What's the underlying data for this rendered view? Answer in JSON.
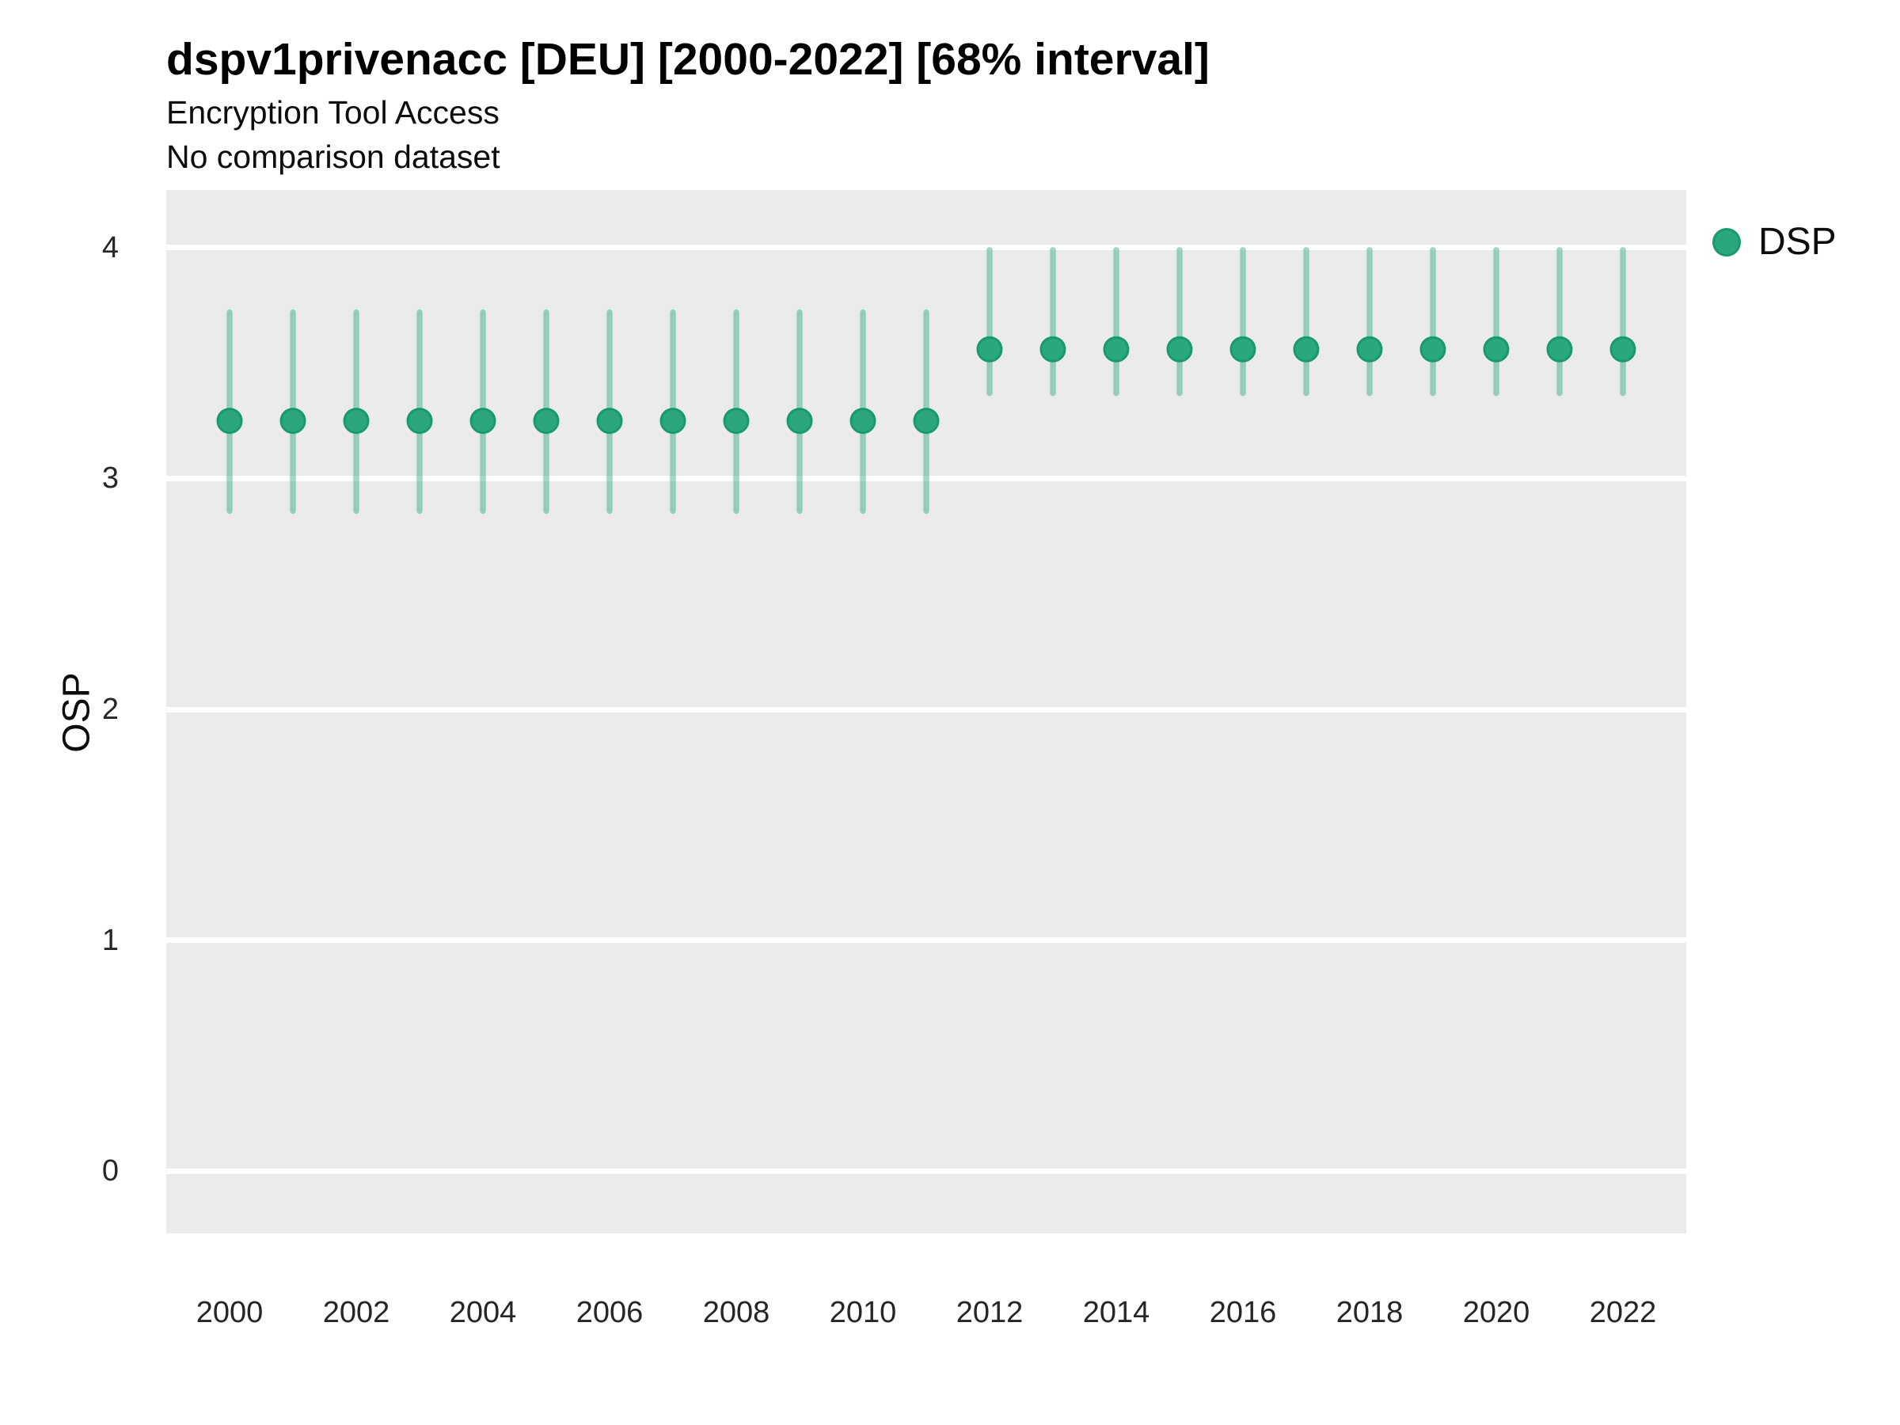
{
  "colors": {
    "point_fill": "#2aa87c",
    "point_stroke": "#1a9a6c",
    "interval": "rgba(42,168,124,0.45)",
    "panel_background": "#ebebeb",
    "gridline": "#ffffff",
    "axis_text": "#262626"
  },
  "chart_data": {
    "type": "scatter",
    "title": "dspv1privenacc [DEU] [2000-2022] [68% interval]",
    "subtitle": "Encryption Tool Access",
    "note": "No comparison dataset",
    "interval_label": "68% interval",
    "xlabel": "",
    "ylabel": "OSP",
    "ylim": [
      -0.27,
      4.25
    ],
    "yticks": [
      0,
      1,
      2,
      3,
      4
    ],
    "xticks": [
      2000,
      2002,
      2004,
      2006,
      2008,
      2010,
      2012,
      2014,
      2016,
      2018,
      2020,
      2022
    ],
    "grid": "horizontal-major-only",
    "legend_position": "right",
    "series": [
      {
        "name": "DSP",
        "points": [
          {
            "year": 2000,
            "center": 3.25,
            "lower": 2.86,
            "upper": 3.72
          },
          {
            "year": 2001,
            "center": 3.25,
            "lower": 2.86,
            "upper": 3.72
          },
          {
            "year": 2002,
            "center": 3.25,
            "lower": 2.86,
            "upper": 3.72
          },
          {
            "year": 2003,
            "center": 3.25,
            "lower": 2.86,
            "upper": 3.72
          },
          {
            "year": 2004,
            "center": 3.25,
            "lower": 2.86,
            "upper": 3.72
          },
          {
            "year": 2005,
            "center": 3.25,
            "lower": 2.86,
            "upper": 3.72
          },
          {
            "year": 2006,
            "center": 3.25,
            "lower": 2.86,
            "upper": 3.72
          },
          {
            "year": 2007,
            "center": 3.25,
            "lower": 2.86,
            "upper": 3.72
          },
          {
            "year": 2008,
            "center": 3.25,
            "lower": 2.86,
            "upper": 3.72
          },
          {
            "year": 2009,
            "center": 3.25,
            "lower": 2.86,
            "upper": 3.72
          },
          {
            "year": 2010,
            "center": 3.25,
            "lower": 2.86,
            "upper": 3.72
          },
          {
            "year": 2011,
            "center": 3.25,
            "lower": 2.86,
            "upper": 3.72
          },
          {
            "year": 2012,
            "center": 3.56,
            "lower": 3.37,
            "upper": 3.99
          },
          {
            "year": 2013,
            "center": 3.56,
            "lower": 3.37,
            "upper": 3.99
          },
          {
            "year": 2014,
            "center": 3.56,
            "lower": 3.37,
            "upper": 3.99
          },
          {
            "year": 2015,
            "center": 3.56,
            "lower": 3.37,
            "upper": 3.99
          },
          {
            "year": 2016,
            "center": 3.56,
            "lower": 3.37,
            "upper": 3.99
          },
          {
            "year": 2017,
            "center": 3.56,
            "lower": 3.37,
            "upper": 3.99
          },
          {
            "year": 2018,
            "center": 3.56,
            "lower": 3.37,
            "upper": 3.99
          },
          {
            "year": 2019,
            "center": 3.56,
            "lower": 3.37,
            "upper": 3.99
          },
          {
            "year": 2020,
            "center": 3.56,
            "lower": 3.37,
            "upper": 3.99
          },
          {
            "year": 2021,
            "center": 3.56,
            "lower": 3.37,
            "upper": 3.99
          },
          {
            "year": 2022,
            "center": 3.56,
            "lower": 3.37,
            "upper": 3.99
          }
        ]
      }
    ]
  }
}
